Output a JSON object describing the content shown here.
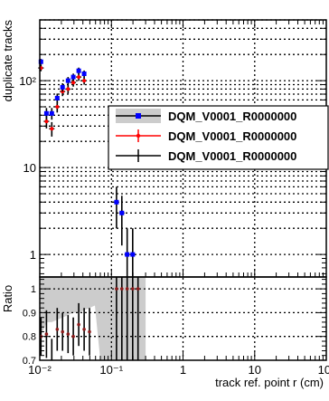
{
  "chart_data": [
    {
      "panel": "main",
      "type": "scatter",
      "title": "",
      "xlabel": "",
      "ylabel": "duplicate tracks",
      "xscale": "log",
      "yscale": "log",
      "xlim": [
        0.01,
        100
      ],
      "ylim": [
        0.55,
        500
      ],
      "grid": true,
      "yticks": [
        1,
        10,
        100
      ],
      "ytick_labels": [
        "1",
        "10",
        "10²"
      ],
      "legend": {
        "placement": "center-right"
      },
      "series": [
        {
          "name": "DQM_V0001_R0000000",
          "color": "#0000ff",
          "marker": "square",
          "band": true,
          "x": [
            0.0104,
            0.0124,
            0.0147,
            0.0175,
            0.0208,
            0.0248,
            0.0294,
            0.035,
            0.0416,
            0.0495,
            0.0588
          ],
          "y": [
            165,
            42,
            42,
            63,
            84,
            100,
            110,
            130,
            120,
            0,
            0
          ]
        },
        {
          "name": "DQM_V0001_R0000000",
          "color": "#ff0000",
          "marker": "circle",
          "x": [
            0.0104,
            0.0124,
            0.0147,
            0.0175,
            0.0208,
            0.0248,
            0.0294,
            0.035,
            0.0416,
            0.0495,
            0.0588,
            0.07,
            0.0832,
            0.0989,
            0.118,
            0.14,
            0.166,
            0.198,
            0.235,
            0.28
          ],
          "y": [
            140,
            34,
            28,
            50,
            75,
            80,
            95,
            110,
            100,
            0,
            0,
            0,
            0,
            0,
            4,
            3,
            1,
            1,
            0,
            0
          ]
        },
        {
          "name": "DQM_V0001_R0000000",
          "color": "#000000",
          "marker": "cross",
          "x": [
            0.0104,
            0.0124,
            0.0147,
            0.0175,
            0.0208,
            0.0248,
            0.0294,
            0.035,
            0.0416,
            0.0495,
            0.0588,
            0.07,
            0.0832,
            0.0989,
            0.118,
            0.14,
            0.166,
            0.198,
            0.235,
            0.28
          ],
          "y": [
            140,
            34,
            28,
            50,
            75,
            80,
            95,
            110,
            100,
            0,
            0,
            0,
            0,
            0,
            4,
            3,
            1,
            1,
            0,
            0
          ]
        }
      ]
    },
    {
      "panel": "ratio",
      "type": "scatter",
      "xlabel": "track ref. point r (cm)",
      "ylabel": "Ratio",
      "xscale": "log",
      "xlim": [
        0.01,
        100
      ],
      "ylim": [
        0.7,
        1.05
      ],
      "grid": true,
      "yticks": [
        0.7,
        0.8,
        0.9,
        1
      ],
      "ytick_labels": [
        "0.7",
        "0.8",
        "0.9",
        "1"
      ],
      "xticks": [
        0.01,
        0.1,
        1,
        10,
        100
      ],
      "xtick_labels": [
        "10⁻²",
        "10⁻¹",
        "1",
        "10",
        "10²"
      ],
      "band": {
        "x": [
          0.01,
          0.011,
          0.0124,
          0.0147,
          0.0175,
          0.0208,
          0.0248,
          0.0294,
          0.035,
          0.0416,
          0.0495,
          0.0588,
          0.07,
          0.0832,
          0.0989,
          0.118,
          0.14,
          0.166,
          0.198,
          0.235,
          0.28,
          0.3
        ],
        "lower": [
          0.8,
          0.82,
          0.86,
          0.86,
          0.87,
          0.88,
          0.89,
          0.9,
          0.9,
          0.91,
          0.92,
          0.93,
          0.7,
          0.7,
          0.7,
          0.7,
          0.7,
          0.7,
          0.7,
          0.7,
          0.7,
          0.7
        ],
        "upper": [
          1.05,
          1.05,
          1.05,
          1.05,
          1.05,
          1.05,
          1.05,
          1.05,
          1.05,
          1.05,
          1.05,
          1.05,
          1.05,
          1.05,
          1.05,
          1.05,
          1.05,
          1.05,
          1.05,
          1.05,
          1.05,
          1.05
        ]
      },
      "series": [
        {
          "name": "ratio",
          "color": "#8b1a1a",
          "marker": "circle",
          "x": [
            0.0104,
            0.0124,
            0.0147,
            0.0175,
            0.0208,
            0.0248,
            0.0294,
            0.035,
            0.0416,
            0.0495,
            0.118,
            0.14,
            0.166,
            0.198,
            0.235
          ],
          "y": [
            0.8,
            0.81,
            0.67,
            0.83,
            0.82,
            0.81,
            0.8,
            0.85,
            0.83,
            0.82,
            1.0,
            1.0,
            1.0,
            1.0,
            1.0
          ],
          "err": [
            0.08,
            0.1,
            0.12,
            0.09,
            0.08,
            0.08,
            0.08,
            0.09,
            0.09,
            0.1,
            0.35,
            0.35,
            0.35,
            0.35,
            0.35
          ]
        }
      ]
    }
  ]
}
